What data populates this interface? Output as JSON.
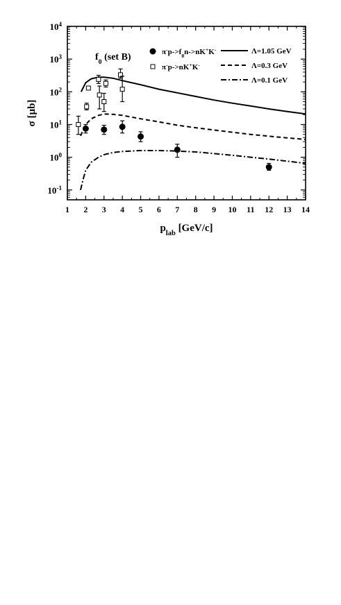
{
  "chart_data": {
    "type": "scatter",
    "panel_label": "f",
    "panel_label_sub": "0",
    "panel_label_suffix": "(set B)",
    "xlabel": {
      "main": "p",
      "sub": "lab",
      "unit": "[GeV/c]"
    },
    "ylabel": {
      "main": "σ",
      "unit": "[µb]"
    },
    "xlim": [
      1,
      14
    ],
    "ylim": [
      0.05,
      10000
    ],
    "yscale": "log",
    "x_ticks": [
      "1",
      "2",
      "3",
      "4",
      "5",
      "6",
      "7",
      "8",
      "9",
      "10",
      "11",
      "12",
      "13",
      "14"
    ],
    "y_ticks": [
      {
        "base": "10",
        "exp": "-1"
      },
      {
        "base": "10",
        "exp": "0"
      },
      {
        "base": "10",
        "exp": "1"
      },
      {
        "base": "10",
        "exp": "2"
      },
      {
        "base": "10",
        "exp": "3"
      },
      {
        "base": "10",
        "exp": "4"
      }
    ],
    "grid": false,
    "legend_points": [
      {
        "marker": "filled-circle",
        "text_parts": [
          [
            "π",
            ""
          ],
          [
            "-",
            "sup"
          ],
          [
            "p->f",
            ""
          ],
          [
            "0",
            "sub"
          ],
          [
            "n->nK",
            ""
          ],
          [
            "+",
            "sup"
          ],
          [
            "K",
            ""
          ],
          [
            "-",
            "sup"
          ]
        ]
      },
      {
        "marker": "open-square",
        "text_parts": [
          [
            "π",
            ""
          ],
          [
            "-",
            "sup"
          ],
          [
            "p->nK",
            ""
          ],
          [
            "+",
            "sup"
          ],
          [
            "K",
            ""
          ],
          [
            "-",
            "sup"
          ]
        ]
      }
    ],
    "legend_lines": [
      {
        "style": "solid",
        "label": "Λ=1.05 GeV"
      },
      {
        "style": "dashed",
        "label": "Λ=0.3 GeV"
      },
      {
        "style": "dashdot",
        "label": "Λ=0.1 GeV"
      }
    ],
    "series": [
      {
        "marker": "filled-circle",
        "points": [
          {
            "x": 2.0,
            "y": 7.5,
            "ylo": 5.5,
            "yhi": 10
          },
          {
            "x": 3.0,
            "y": 7.0,
            "ylo": 5.0,
            "yhi": 9.5
          },
          {
            "x": 4.0,
            "y": 8.5,
            "ylo": 5.5,
            "yhi": 13
          },
          {
            "x": 5.0,
            "y": 4.3,
            "ylo": 3.0,
            "yhi": 6.0
          },
          {
            "x": 7.0,
            "y": 1.7,
            "ylo": 1.0,
            "yhi": 2.5
          },
          {
            "x": 12.0,
            "y": 0.5,
            "ylo": 0.4,
            "yhi": 0.65
          }
        ]
      },
      {
        "marker": "open-square",
        "points": [
          {
            "x": 1.6,
            "y": 10,
            "ylo": 5,
            "yhi": 18
          },
          {
            "x": 2.05,
            "y": 35,
            "ylo": 28,
            "yhi": 45
          },
          {
            "x": 2.15,
            "y": 130,
            "ylo": 120,
            "yhi": 145
          },
          {
            "x": 2.7,
            "y": 240,
            "ylo": 180,
            "yhi": 320
          },
          {
            "x": 2.75,
            "y": 80,
            "ylo": 30,
            "yhi": 150
          },
          {
            "x": 3.0,
            "y": 50,
            "ylo": 25,
            "yhi": 90
          },
          {
            "x": 3.1,
            "y": 180,
            "ylo": 140,
            "yhi": 230
          },
          {
            "x": 3.9,
            "y": 330,
            "ylo": 260,
            "yhi": 500
          },
          {
            "x": 4.0,
            "y": 120,
            "ylo": 50,
            "yhi": 300
          }
        ]
      },
      {
        "style": "solid",
        "points": [
          [
            1.75,
            100
          ],
          [
            2.0,
            190
          ],
          [
            2.3,
            250
          ],
          [
            2.7,
            280
          ],
          [
            3.0,
            280
          ],
          [
            3.5,
            260
          ],
          [
            4.0,
            220
          ],
          [
            5.0,
            165
          ],
          [
            6.0,
            120
          ],
          [
            7.0,
            93
          ],
          [
            8.0,
            72
          ],
          [
            9.0,
            56
          ],
          [
            10.0,
            45
          ],
          [
            11.0,
            37
          ],
          [
            12.0,
            30
          ],
          [
            13.0,
            25
          ],
          [
            14.0,
            21
          ]
        ]
      },
      {
        "style": "dashed",
        "points": [
          [
            1.72,
            4.5
          ],
          [
            1.85,
            6.5
          ],
          [
            2.0,
            10
          ],
          [
            2.3,
            15
          ],
          [
            2.7,
            19
          ],
          [
            3.0,
            21
          ],
          [
            3.5,
            20.5
          ],
          [
            4.0,
            19
          ],
          [
            5.0,
            15
          ],
          [
            6.0,
            12
          ],
          [
            7.0,
            9.5
          ],
          [
            8.0,
            8
          ],
          [
            9.0,
            6.8
          ],
          [
            10.0,
            5.8
          ],
          [
            11.0,
            5
          ],
          [
            12.0,
            4.4
          ],
          [
            13.0,
            3.9
          ],
          [
            14.0,
            3.5
          ]
        ]
      },
      {
        "style": "dashdot",
        "points": [
          [
            1.72,
            0.1
          ],
          [
            1.85,
            0.2
          ],
          [
            2.0,
            0.4
          ],
          [
            2.3,
            0.7
          ],
          [
            2.7,
            1.0
          ],
          [
            3.0,
            1.2
          ],
          [
            3.5,
            1.4
          ],
          [
            4.0,
            1.5
          ],
          [
            5.0,
            1.6
          ],
          [
            6.0,
            1.6
          ],
          [
            7.0,
            1.55
          ],
          [
            8.0,
            1.45
          ],
          [
            9.0,
            1.3
          ],
          [
            10.0,
            1.15
          ],
          [
            11.0,
            1.0
          ],
          [
            12.0,
            0.88
          ],
          [
            13.0,
            0.76
          ],
          [
            14.0,
            0.65
          ]
        ]
      }
    ]
  }
}
